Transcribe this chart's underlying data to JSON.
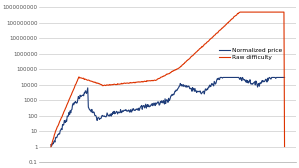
{
  "title": "",
  "ylabel": "",
  "xlabel": "",
  "ylim_log": [
    0.1,
    2000000000
  ],
  "line1_color": "#1f3d7a",
  "line2_color": "#dd3300",
  "legend_labels": [
    "Normalized price",
    "Raw difficulty"
  ],
  "plot_bg_color": "#ffffff",
  "grid_color": "#cccccc",
  "yticks": [
    0.1,
    1,
    10,
    100,
    1000,
    10000,
    100000,
    1000000,
    10000000,
    100000000,
    1000000000
  ],
  "ytick_labels": [
    "0.1",
    "1",
    "10",
    "100",
    "1000",
    "10000",
    "100000",
    "1000000",
    "10000000",
    "100000000",
    "1000000000"
  ],
  "n_points": 400
}
